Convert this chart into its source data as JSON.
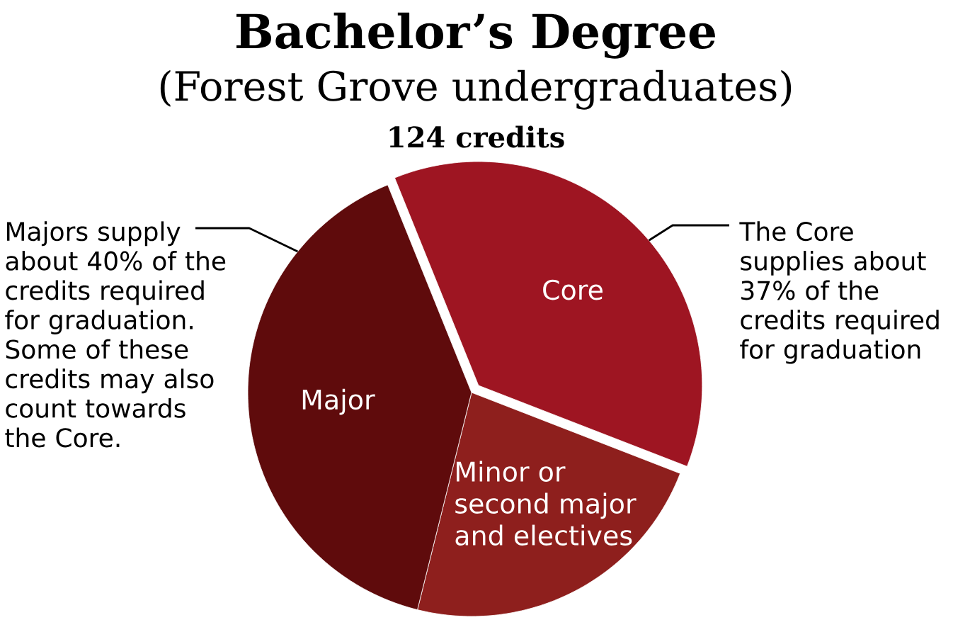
{
  "chart_data": {
    "type": "pie",
    "title": "Bachelor’s Degree",
    "subtitle": "(Forest Grove undergraduates)",
    "categories": [
      "Core",
      "Minor or second major and electives",
      "Major"
    ],
    "values": [
      37,
      23,
      40
    ],
    "colors": [
      "#9e1522",
      "#8e1f1d",
      "#5f0b0c"
    ],
    "annotations": [
      "124 credits",
      "Majors supply about 40% of the credits required for graduation. Some of these credits may also count towards the Core.",
      "The Core supplies about 37% of the credits required for graduation"
    ]
  }
}
